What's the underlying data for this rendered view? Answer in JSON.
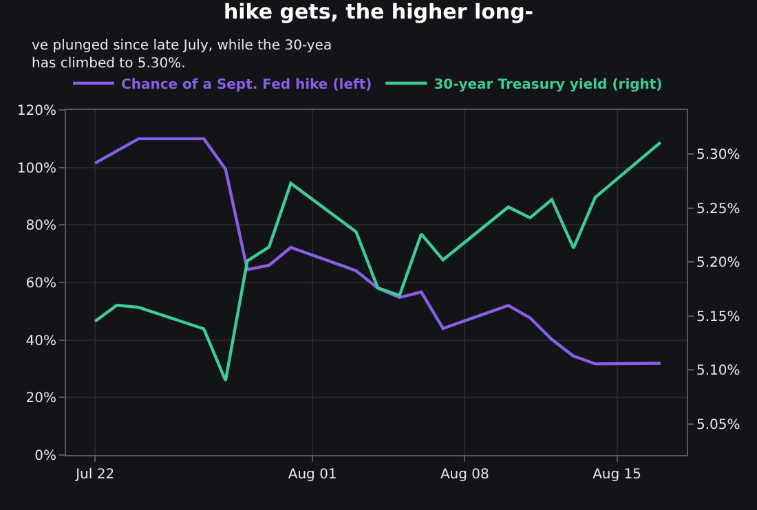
{
  "chart_data": {
    "type": "line",
    "title": "hike gets, the higher long-",
    "subtitle": "ve plunged since late July, while the 30-yea\nhas climbed to 5.30%.",
    "x": [
      "--07-22",
      "--07-24",
      "--07-27",
      "--07-28",
      "--07-29",
      "--07-30",
      "--07-31",
      "--08-03",
      "--08-04",
      "--08-05",
      "--08-06",
      "--08-07",
      "--08-10",
      "--08-11",
      "--08-12",
      "--08-13",
      "--08-14",
      "--08-17"
    ],
    "series": [
      {
        "name": "Chance of a Sept. Fed hike (left)",
        "color": "#8a5fe6",
        "values": [
          101.5,
          110,
          110,
          99.4,
          64.5,
          66,
          72.2,
          64.1,
          58,
          54.8,
          56.7,
          44,
          52,
          47.7,
          40.2,
          34.4,
          31.7,
          31.9
        ]
      },
      {
        "name": "30-year Treasury yield (right)",
        "color": "#3ecb96",
        "axis": "y2",
        "x": [
          "--07-22",
          "--07-23",
          "--07-24",
          "--07-27",
          "--07-28",
          "--07-29",
          "--07-30",
          "--07-31",
          "--08-03",
          "--08-04",
          "--08-05",
          "--08-06",
          "--08-07",
          "--08-10",
          "--08-11",
          "--08-12",
          "--08-13",
          "--08-14",
          "--08-17"
        ],
        "values": [
          5.145,
          5.16,
          5.158,
          5.138,
          5.09,
          5.201,
          5.214,
          5.273,
          5.228,
          5.176,
          5.169,
          5.226,
          5.202,
          5.251,
          5.241,
          5.258,
          5.213,
          5.26,
          5.311
        ]
      }
    ],
    "xlim": [
      "--07-20T16:00",
      "--08-18T05:00"
    ],
    "xticks": [
      {
        "value": "--07-22",
        "label": "Jul 22"
      },
      {
        "value": "--08-01",
        "label": "Aug 01"
      },
      {
        "value": "--08-08",
        "label": "Aug 08"
      },
      {
        "value": "--08-15",
        "label": "Aug 15"
      }
    ],
    "ylim": [
      0,
      120
    ],
    "yticks": [
      {
        "value": 0,
        "label": "0%"
      },
      {
        "value": 20,
        "label": "20%"
      },
      {
        "value": 40,
        "label": "40%"
      },
      {
        "value": 60,
        "label": "60%"
      },
      {
        "value": 80,
        "label": "80%"
      },
      {
        "value": 100,
        "label": "100%"
      },
      {
        "value": 120,
        "label": "120%"
      }
    ],
    "y2lim": [
      5.021,
      5.341
    ],
    "y2ticks": [
      {
        "value": 5.05,
        "label": "5.05%"
      },
      {
        "value": 5.1,
        "label": "5.10%"
      },
      {
        "value": 5.15,
        "label": "5.15%"
      },
      {
        "value": 5.2,
        "label": "5.20%"
      },
      {
        "value": 5.25,
        "label": "5.25%"
      },
      {
        "value": 5.3,
        "label": "5.30%"
      }
    ],
    "grid": true,
    "legend": "top left",
    "marker": "none",
    "line_style": "solid"
  }
}
